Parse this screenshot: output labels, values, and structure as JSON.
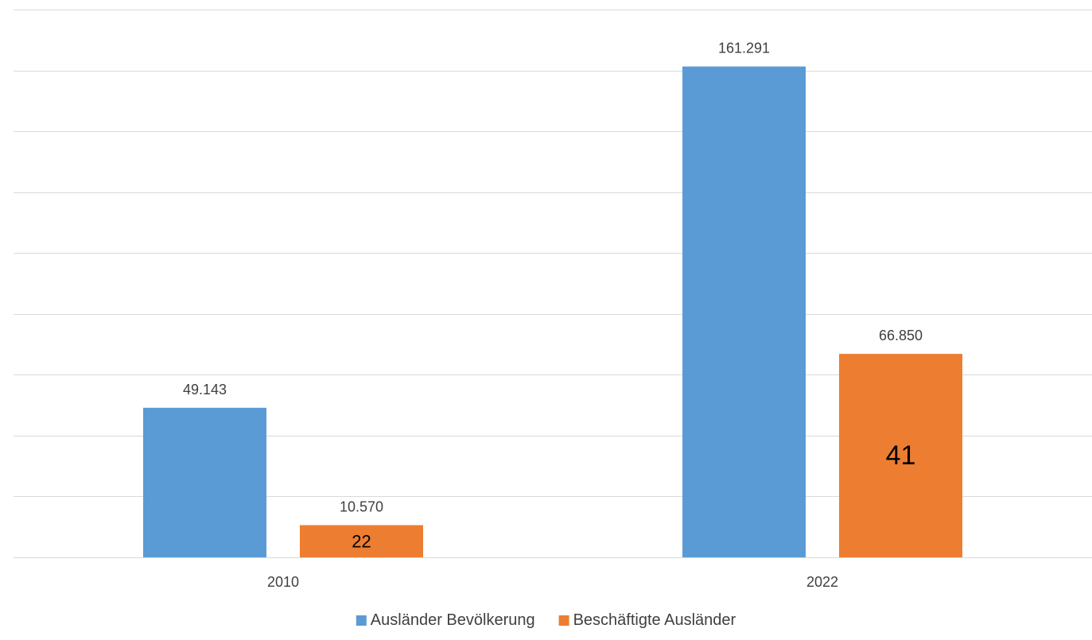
{
  "chart_data": {
    "type": "bar",
    "categories": [
      "2010",
      "2022"
    ],
    "series": [
      {
        "name": "Ausländer Bevölkerung",
        "color": "#5B9BD5",
        "values": [
          49143,
          161291
        ],
        "value_labels": [
          "49.143",
          "161.291"
        ]
      },
      {
        "name": "Beschäftigte Ausländer",
        "color": "#ED7D31",
        "values": [
          10570,
          66850
        ],
        "value_labels": [
          "10.570",
          "66.850"
        ],
        "inner_labels": [
          "22",
          "41"
        ]
      }
    ],
    "ylim": [
      0,
      180000
    ],
    "y_gridline_step": 20000,
    "grid": true,
    "legend_position": "bottom"
  }
}
